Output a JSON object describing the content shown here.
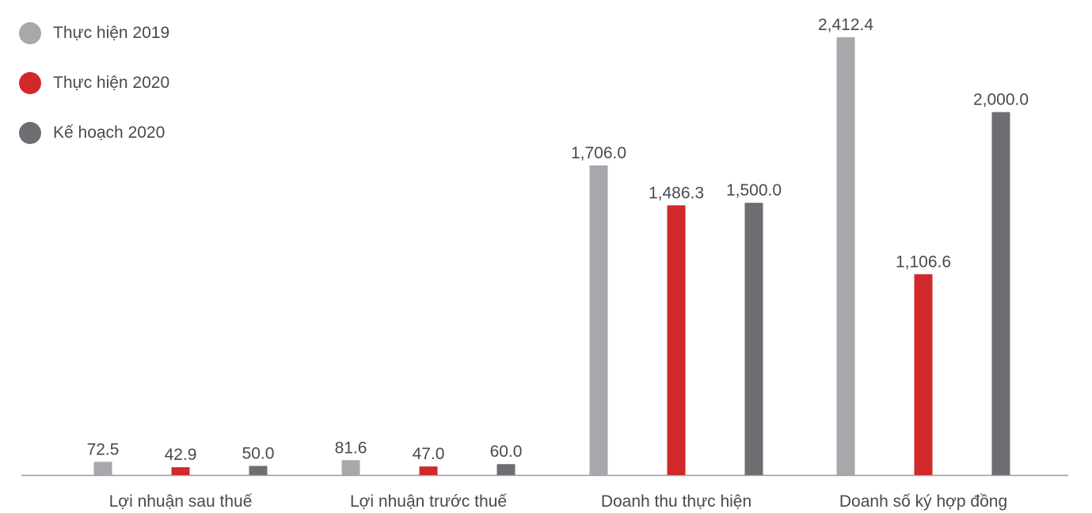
{
  "chart_data": {
    "type": "bar",
    "categories": [
      "Lợi nhuận sau thuế",
      "Lợi nhuận trước thuế",
      "Doanh thu thực hiện",
      "Doanh số ký hợp đồng"
    ],
    "series": [
      {
        "name": "Thực hiện 2019",
        "color": "#a7a8ac",
        "values": [
          72.5,
          81.6,
          1706.0,
          2412.4
        ],
        "labels": [
          "72.5",
          "81.6",
          "1,706.0",
          "2,412.4"
        ]
      },
      {
        "name": "Thực hiện 2020",
        "color": "#d2282a",
        "values": [
          42.9,
          47.0,
          1486.3,
          1106.6
        ],
        "labels": [
          "42.9",
          "47.0",
          "1,486.3",
          "1,106.6"
        ]
      },
      {
        "name": "Kế hoạch 2020",
        "color": "#6d6e72",
        "values": [
          50.0,
          60.0,
          1500.0,
          2000.0
        ],
        "labels": [
          "50.0",
          "60.0",
          "1,500.0",
          "2,000.0"
        ]
      }
    ],
    "ylim": [
      0,
      2500
    ],
    "grid": false,
    "legend_position": "top-left",
    "data_labels": true
  }
}
